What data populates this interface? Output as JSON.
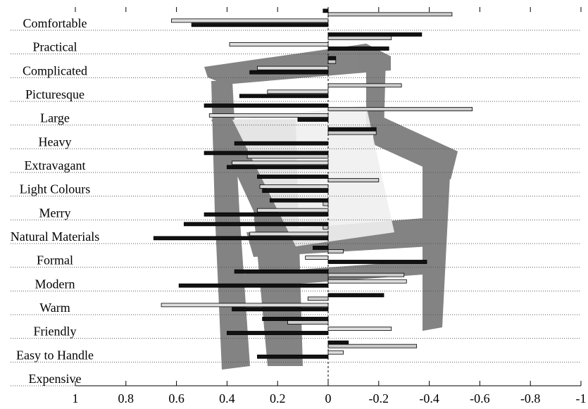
{
  "chart_data": {
    "type": "bar",
    "categories": [
      "Comfortable",
      "Practical",
      "Complicated",
      "Picturesque",
      "Large",
      "Heavy",
      "Extravagant",
      "Light Colours",
      "Merry",
      "Natural Materials",
      "Formal",
      "Modern",
      "Warm",
      "Friendly",
      "Easy to Handle",
      "Expensive"
    ],
    "series": [
      {
        "color": "#111111",
        "values": [
          0.02,
          -0.37,
          -0.03,
          0,
          0.49,
          -0.19,
          0.49,
          0.28,
          0.23,
          0.57,
          0.06,
          0.37,
          -0.22,
          0.26,
          -0.08,
          null
        ]
      },
      {
        "color": "#cccccc",
        "values": [
          -0.49,
          -0.25,
          -0.03,
          -0.29,
          -0.57,
          -0.19,
          0.32,
          -0.2,
          0.02,
          0.02,
          -0.06,
          -0.3,
          0.08,
          0.16,
          -0.35,
          null
        ]
      },
      {
        "color": "#dddddd",
        "values": [
          0.62,
          0.39,
          0.28,
          0.24,
          0.47,
          0,
          0.38,
          0.27,
          0.28,
          0.31,
          0.09,
          -0.31,
          0.66,
          -0.25,
          -0.06,
          null
        ]
      },
      {
        "color": "#111111",
        "values": [
          0.54,
          -0.24,
          0.31,
          0.35,
          0.12,
          0.37,
          0.4,
          0.26,
          0.49,
          0.69,
          -0.39,
          0.59,
          0.38,
          0.4,
          0.28,
          null
        ]
      }
    ],
    "xlim": [
      1,
      -1
    ],
    "xticks": [
      1,
      0.8,
      0.6,
      0.4,
      0.2,
      0,
      -0.2,
      -0.4,
      -0.6,
      -0.8,
      -1
    ]
  }
}
